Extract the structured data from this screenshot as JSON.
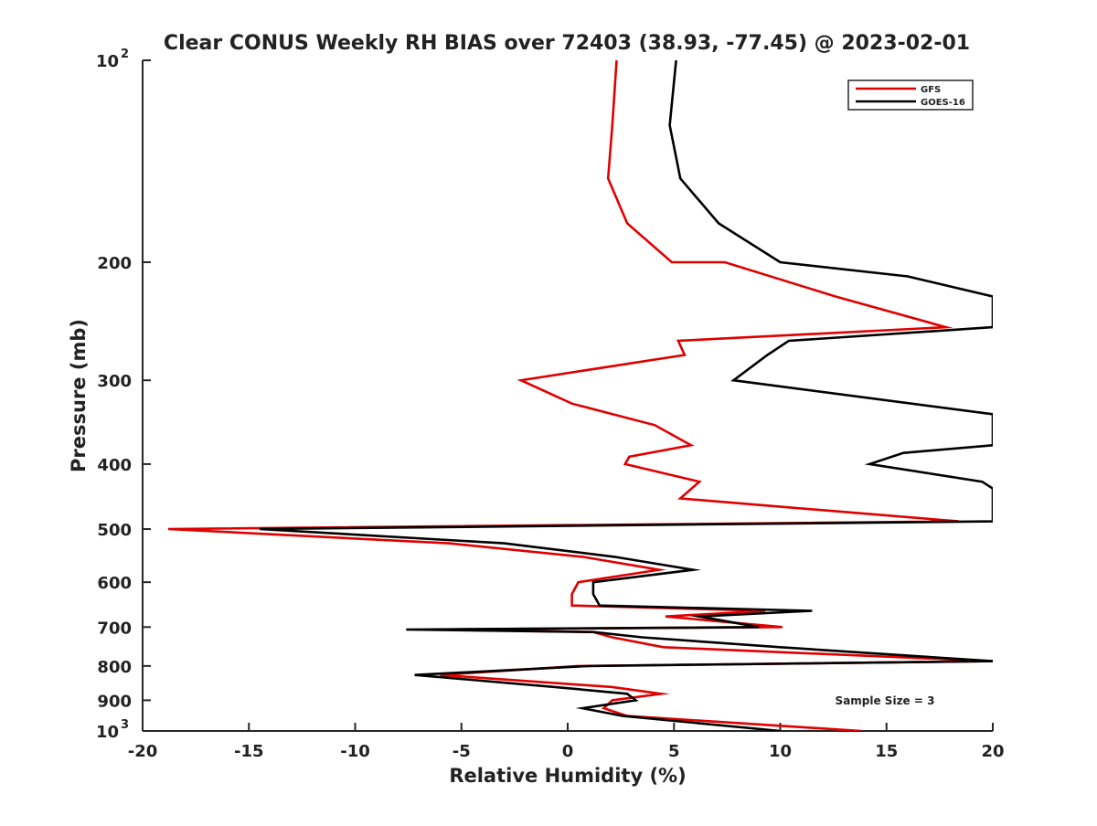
{
  "chart_data": {
    "type": "line",
    "title": "Clear CONUS Weekly RH BIAS over 72403 (38.93, -77.45) @ 2023-02-01",
    "xlabel": "Relative Humidity (%)",
    "ylabel": "Pressure (mb)",
    "xlim": [
      -20,
      20
    ],
    "ylim": [
      100,
      1000
    ],
    "yscale": "log",
    "y_inverted": true,
    "grid": false,
    "legend_position": "top-right",
    "x_ticks": [
      "-20",
      "-15",
      "-10",
      "-5",
      "0",
      "5",
      "10",
      "15",
      "20"
    ],
    "y_ticks": [
      {
        "value": 100,
        "label": "10",
        "exp": "2"
      },
      {
        "value": 200,
        "label": "200"
      },
      {
        "value": 300,
        "label": "300"
      },
      {
        "value": 400,
        "label": "400"
      },
      {
        "value": 500,
        "label": "500"
      },
      {
        "value": 600,
        "label": "600"
      },
      {
        "value": 700,
        "label": "700"
      },
      {
        "value": 800,
        "label": "800"
      },
      {
        "value": 900,
        "label": "900"
      },
      {
        "value": 1000,
        "label": "10",
        "exp": "3"
      }
    ],
    "annotation": "Sample Size = 3",
    "series": [
      {
        "name": "GFS",
        "color": "#e00000",
        "points": [
          [
            2.3,
            100
          ],
          [
            2.1,
            125
          ],
          [
            1.9,
            150
          ],
          [
            2.8,
            175
          ],
          [
            4.9,
            200
          ],
          [
            7.4,
            200
          ],
          [
            12.6,
            225
          ],
          [
            17.8,
            250
          ],
          [
            5.2,
            262
          ],
          [
            5.5,
            275
          ],
          [
            -2.2,
            300
          ],
          [
            0.2,
            325
          ],
          [
            4.1,
            350
          ],
          [
            5.8,
            375
          ],
          [
            2.9,
            390
          ],
          [
            2.7,
            400
          ],
          [
            6.2,
            425
          ],
          [
            5.3,
            450
          ],
          [
            18.4,
            487
          ],
          [
            -18.8,
            500
          ],
          [
            -5.6,
            525
          ],
          [
            0.7,
            550
          ],
          [
            4.3,
            575
          ],
          [
            0.5,
            600
          ],
          [
            0.2,
            625
          ],
          [
            0.2,
            650
          ],
          [
            9.3,
            662
          ],
          [
            4.6,
            675
          ],
          [
            10.1,
            700
          ],
          [
            -6.5,
            706
          ],
          [
            1.2,
            712
          ],
          [
            2.1,
            725
          ],
          [
            4.5,
            750
          ],
          [
            20,
            787
          ],
          [
            0.5,
            800
          ],
          [
            -6.0,
            825
          ],
          [
            2.1,
            860
          ],
          [
            4.4,
            880
          ],
          [
            2.1,
            900
          ],
          [
            1.7,
            925
          ],
          [
            2.8,
            950
          ],
          [
            13.8,
            1000
          ]
        ]
      },
      {
        "name": "GOES-16",
        "color": "#000000",
        "points": [
          [
            5.1,
            100
          ],
          [
            4.8,
            125
          ],
          [
            5.3,
            150
          ],
          [
            7.1,
            175
          ],
          [
            10.0,
            200
          ],
          [
            16.0,
            210
          ],
          [
            20,
            225
          ],
          [
            20,
            250
          ],
          [
            10.4,
            262
          ],
          [
            9.4,
            275
          ],
          [
            7.8,
            300
          ],
          [
            20,
            337
          ],
          [
            20,
            375
          ],
          [
            15.8,
            385
          ],
          [
            14.2,
            400
          ],
          [
            19.5,
            425
          ],
          [
            20,
            435
          ],
          [
            20,
            487
          ],
          [
            -14.5,
            500
          ],
          [
            -3.0,
            525
          ],
          [
            2.2,
            550
          ],
          [
            5.9,
            575
          ],
          [
            1.2,
            600
          ],
          [
            1.2,
            625
          ],
          [
            1.5,
            650
          ],
          [
            11.5,
            662
          ],
          [
            6.2,
            675
          ],
          [
            9.0,
            700
          ],
          [
            -7.6,
            706
          ],
          [
            1.2,
            712
          ],
          [
            3.5,
            725
          ],
          [
            10.0,
            750
          ],
          [
            20,
            787
          ],
          [
            1.0,
            800
          ],
          [
            -7.2,
            825
          ],
          [
            -0.6,
            860
          ],
          [
            2.8,
            880
          ],
          [
            3.2,
            900
          ],
          [
            0.7,
            925
          ],
          [
            2.6,
            950
          ],
          [
            10.0,
            1000
          ]
        ]
      }
    ]
  }
}
